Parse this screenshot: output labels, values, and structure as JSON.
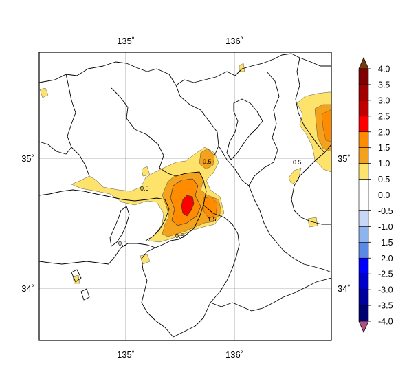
{
  "map": {
    "lon_ticks": [
      {
        "lon": 135,
        "label": "135˚"
      },
      {
        "lon": 136,
        "label": "136˚"
      }
    ],
    "lat_ticks": [
      {
        "lat": 35,
        "label": "35˚"
      },
      {
        "lat": 34,
        "label": "34˚"
      }
    ],
    "extent": {
      "lon_min": 134.2,
      "lon_max": 136.9,
      "lat_min": 33.6,
      "lat_max": 35.8
    },
    "contour_labels": [
      "0.5",
      "0.5",
      "0.5",
      "1.5",
      "0.5",
      "0.5"
    ]
  },
  "colorbar": {
    "levels": [
      "4.0",
      "3.5",
      "3.0",
      "2.5",
      "2.0",
      "1.5",
      "1.0",
      "0.5",
      "0.0",
      "-0.5",
      "-1.0",
      "-1.5",
      "-2.0",
      "-2.5",
      "-3.0",
      "-3.5",
      "-4.0"
    ],
    "colors": [
      "#7f0000",
      "#a00000",
      "#c00000",
      "#ff0000",
      "#ff8c00",
      "#f4a21c",
      "#fde26b",
      "#ffffff",
      "#ffffff",
      "#c8d7f5",
      "#8eb4f0",
      "#5a8ae6",
      "#0000ff",
      "#0000c8",
      "#00009b",
      "#000070"
    ],
    "top_arrow_color": "#7a3a10",
    "bottom_arrow_color": "#b05080"
  },
  "fills": {
    "light": "#fde26b",
    "medium": "#f4a21c",
    "strong": "#ff8c00",
    "max": "#ff0000"
  }
}
